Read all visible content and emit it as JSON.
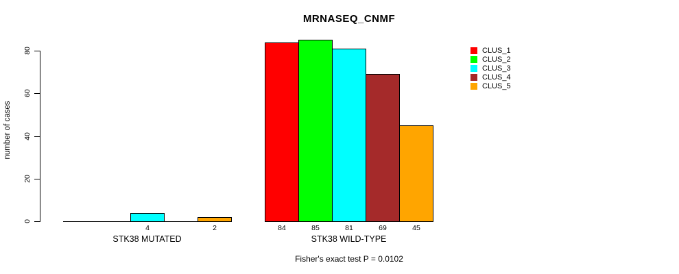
{
  "chart_data": {
    "type": "bar",
    "title": "MRNASEQ_CNMF",
    "ylabel": "number of cases",
    "xlabel": "",
    "ylim": [
      0,
      80
    ],
    "y_ticks": [
      0,
      20,
      40,
      60,
      80
    ],
    "grid": false,
    "legend_position": "topright",
    "categories": [
      "STK38 MUTATED",
      "STK38 WILD-TYPE"
    ],
    "series": [
      {
        "name": "CLUS_1",
        "color": "#FF0000",
        "values": [
          0,
          84
        ]
      },
      {
        "name": "CLUS_2",
        "color": "#00FF00",
        "values": [
          0,
          85
        ]
      },
      {
        "name": "CLUS_3",
        "color": "#00FFFF",
        "values": [
          4,
          81
        ]
      },
      {
        "name": "CLUS_4",
        "color": "#A52A2A",
        "values": [
          0,
          69
        ]
      },
      {
        "name": "CLUS_5",
        "color": "#FFA500",
        "values": [
          2,
          45
        ]
      }
    ],
    "annotation": "Fisher's exact test P = 0.0102"
  }
}
